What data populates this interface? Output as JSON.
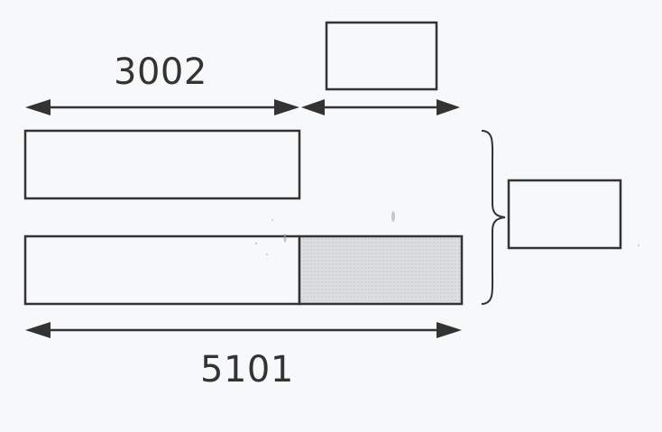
{
  "diagram": {
    "top_length": "3002",
    "total_length": "5101",
    "colors": {
      "ink": "#333333",
      "shade": "#d2d4d6",
      "paper": "#f7f8f9"
    }
  }
}
